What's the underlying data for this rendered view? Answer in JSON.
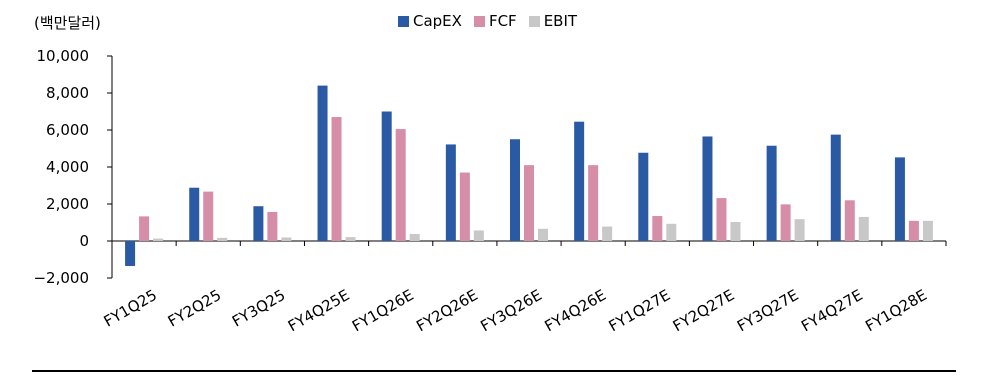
{
  "chart_data": {
    "type": "bar",
    "unit_label": "(백만달러)",
    "categories": [
      "FY1Q25",
      "FY2Q25",
      "FY3Q25",
      "FY4Q25E",
      "FY1Q26E",
      "FY2Q26E",
      "FY3Q26E",
      "FY4Q26E",
      "FY1Q27E",
      "FY2Q27E",
      "FY3Q27E",
      "FY4Q27E",
      "FY1Q28E"
    ],
    "series": [
      {
        "name": "CapEX",
        "color": "#2a5aa4",
        "values": [
          -1350,
          2880,
          1880,
          8400,
          7000,
          5220,
          5500,
          6450,
          4770,
          5650,
          5150,
          5750,
          4520
        ]
      },
      {
        "name": "FCF",
        "color": "#d68da8",
        "values": [
          1330,
          2670,
          1570,
          6700,
          6050,
          3700,
          4100,
          4100,
          1350,
          2320,
          1980,
          2200,
          1090
        ]
      },
      {
        "name": "EBIT",
        "color": "#c8c8c8",
        "values": [
          130,
          170,
          190,
          210,
          380,
          570,
          660,
          780,
          930,
          1030,
          1180,
          1300,
          1090
        ]
      }
    ],
    "yticks": [
      "10,000",
      "8,000",
      "6,000",
      "4,000",
      "2,000",
      "0",
      "−2,000"
    ],
    "ylim": [
      -2000,
      10000
    ],
    "legend_position": "top-center",
    "grid": false
  }
}
